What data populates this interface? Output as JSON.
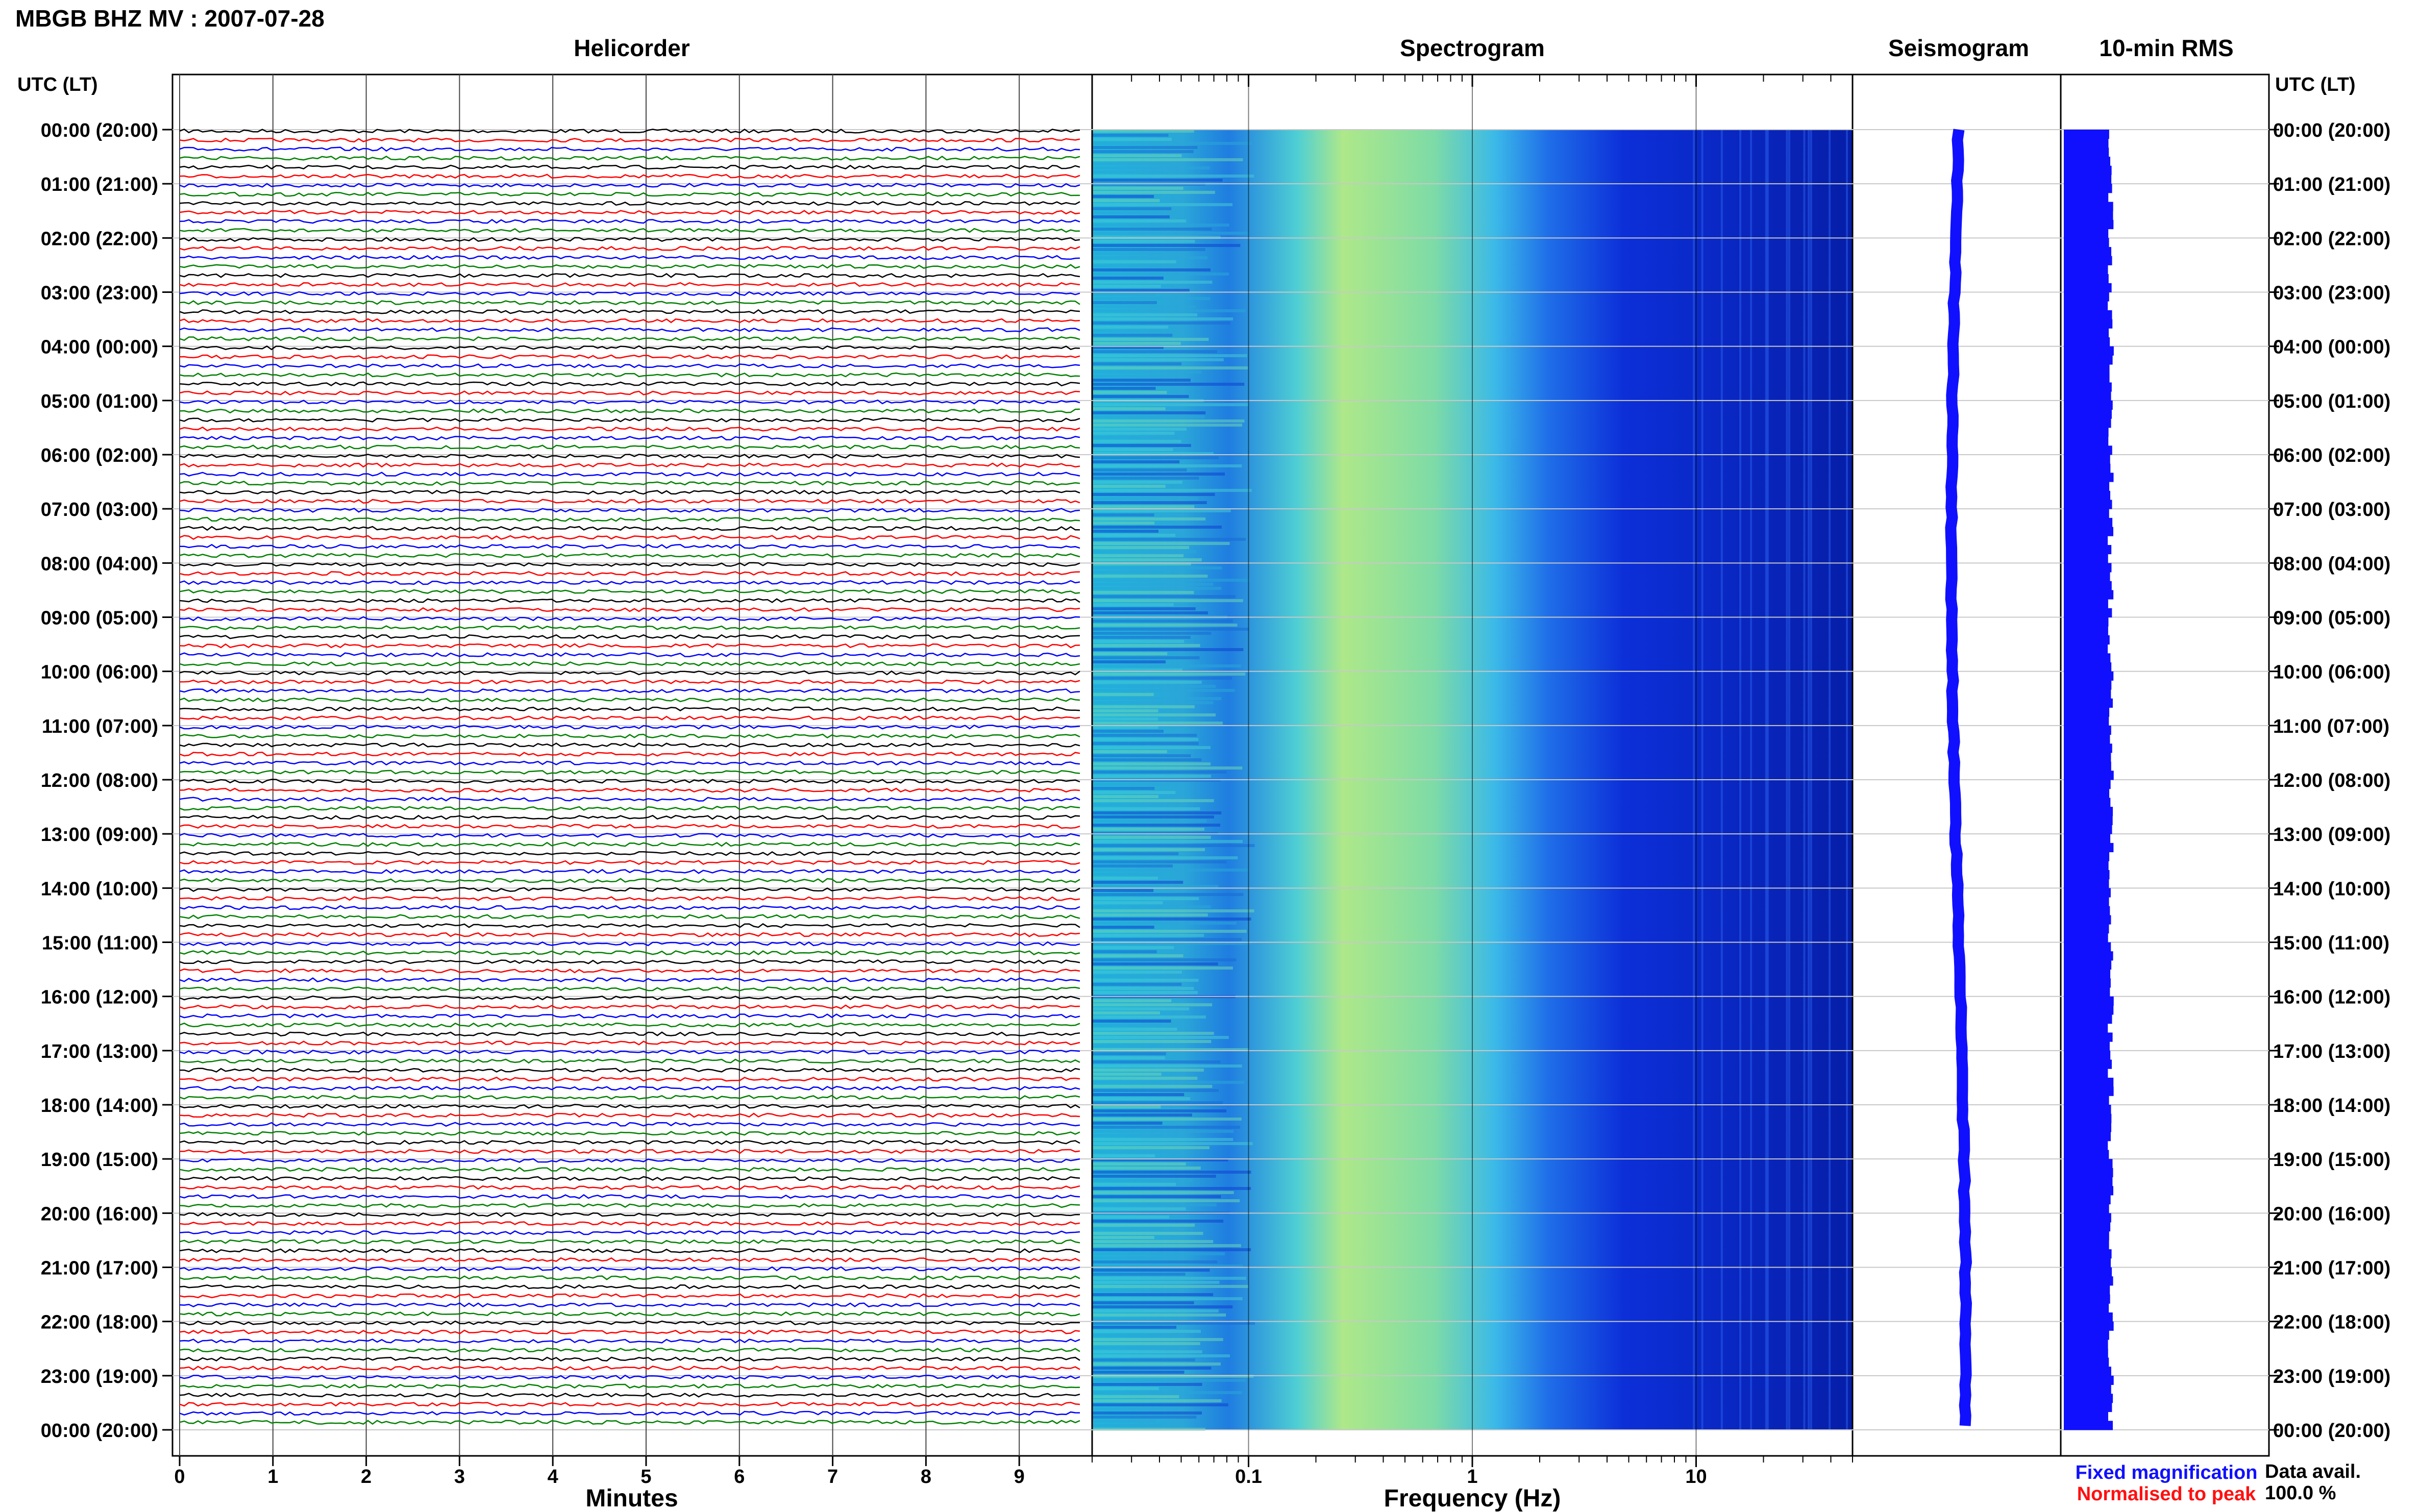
{
  "header": {
    "title": "MBGB BHZ MV : 2007-07-28"
  },
  "panels": {
    "helicorder": "Helicorder",
    "spectrogram": "Spectrogram",
    "seismogram": "Seismogram",
    "rms": "10-min RMS"
  },
  "axes": {
    "time_label_left": "UTC (LT)",
    "time_label_right": "UTC (LT)",
    "x_label_helicorder": "Minutes",
    "x_label_spectrogram": "Frequency (Hz)"
  },
  "legend": {
    "fixed": "Fixed magnification",
    "normalised": "Normalised to peak",
    "fixed_color": "#1010ff",
    "normalised_color": "#ff1010"
  },
  "availability": {
    "label": "Data avail.",
    "value": "100.0 %"
  },
  "chart_data": {
    "type": "helicorder",
    "time_ticks": [
      "00:00 (20:00)",
      "01:00 (21:00)",
      "02:00 (22:00)",
      "03:00 (23:00)",
      "04:00 (00:00)",
      "05:00 (01:00)",
      "06:00 (02:00)",
      "07:00 (03:00)",
      "08:00 (04:00)",
      "09:00 (05:00)",
      "10:00 (06:00)",
      "11:00 (07:00)",
      "12:00 (08:00)",
      "13:00 (09:00)",
      "14:00 (10:00)",
      "15:00 (11:00)",
      "16:00 (12:00)",
      "17:00 (13:00)",
      "18:00 (14:00)",
      "19:00 (15:00)",
      "20:00 (16:00)",
      "21:00 (17:00)",
      "22:00 (18:00)",
      "23:00 (19:00)",
      "00:00 (20:00)"
    ],
    "minutes_ticks": [
      "0",
      "1",
      "2",
      "3",
      "4",
      "5",
      "6",
      "7",
      "8",
      "9"
    ],
    "minutes_range": [
      0,
      10
    ],
    "trace_colors": [
      "#000000",
      "#ff0000",
      "#0000ff",
      "#008000"
    ],
    "traces_per_hour": 6,
    "freq_ticks": [
      "0.1",
      "1",
      "10"
    ],
    "freq_range": [
      0.02,
      50
    ],
    "log_frequency": true,
    "seismogram_color": "#1010ff",
    "rms_color": "#1010ff"
  }
}
